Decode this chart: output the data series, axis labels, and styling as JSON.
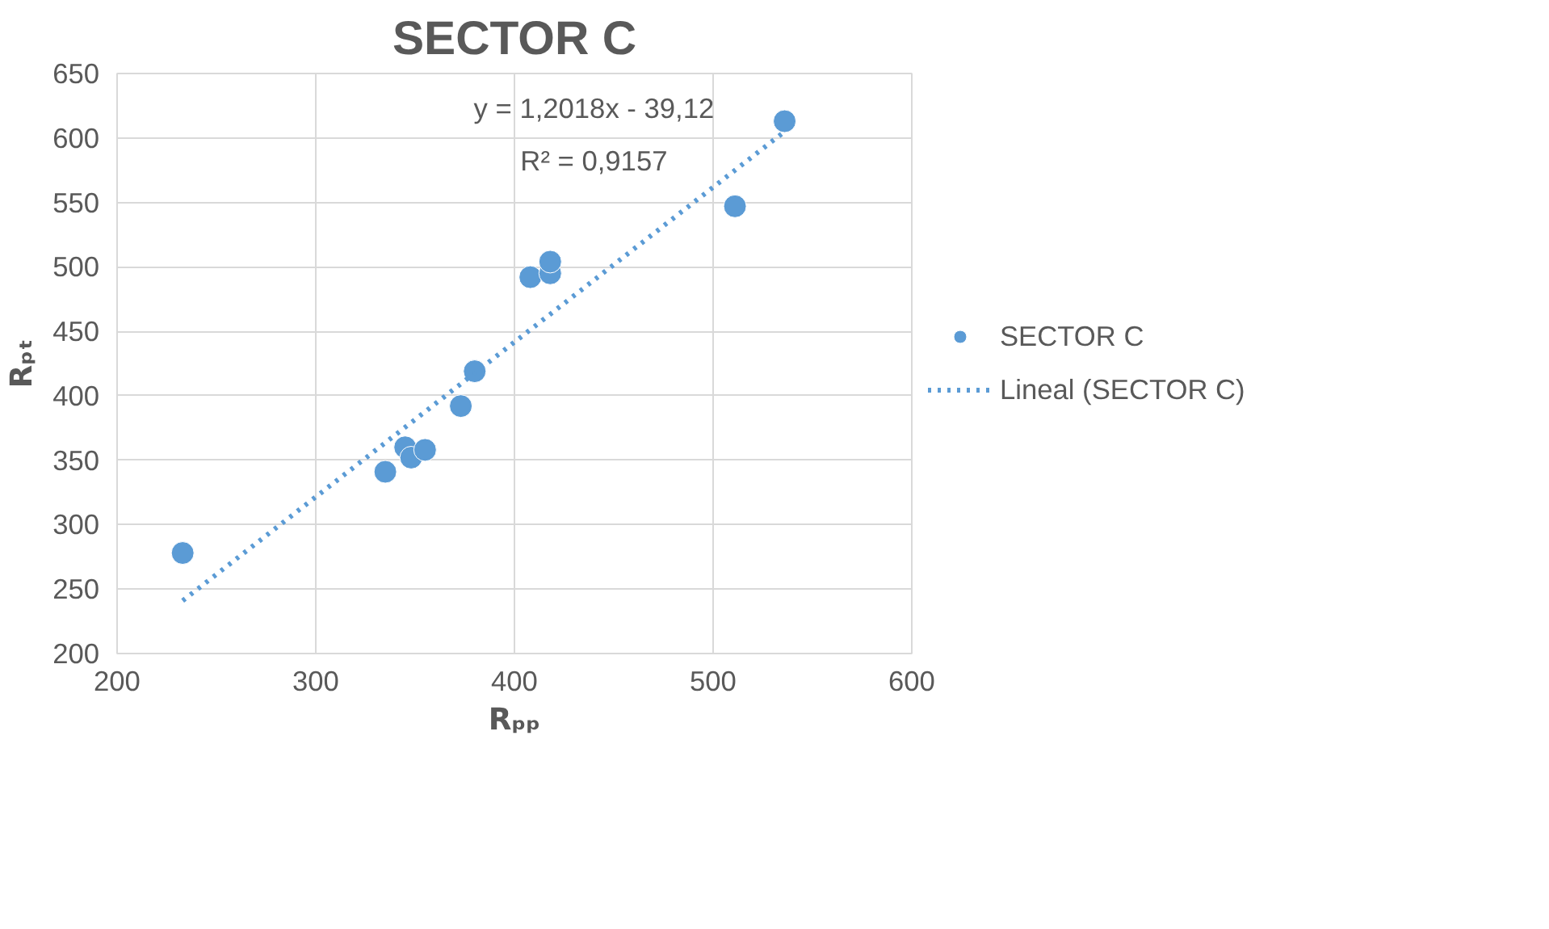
{
  "chart_data": {
    "type": "scatter",
    "title": "SECTOR C",
    "xlabel": "Rₚₚ",
    "ylabel": "Rₚₜ",
    "xlim": [
      200,
      600
    ],
    "xticks": [
      200,
      300,
      400,
      500,
      600
    ],
    "ylim": [
      200,
      650
    ],
    "yticks": [
      200,
      250,
      300,
      350,
      400,
      450,
      500,
      550,
      600,
      650
    ],
    "grid": true,
    "legend": "right",
    "annotations": [
      "y = 1,2018x - 39,12",
      "R² = 0,9157"
    ],
    "series": [
      {
        "name": "SECTOR C",
        "type": "scatter",
        "marker": "circle",
        "color": "#5b9bd5",
        "x": [
          233,
          335,
          345,
          348,
          355,
          373,
          380,
          408,
          418,
          418,
          511,
          536
        ],
        "values": [
          278,
          341,
          360,
          352,
          358,
          392,
          419,
          492,
          495,
          504,
          547,
          613
        ]
      },
      {
        "name": "Lineal (SECTOR C)",
        "type": "line",
        "line_style": "dotted",
        "color": "#5b9bd5",
        "x": [
          233,
          536
        ],
        "values": [
          241,
          605
        ]
      }
    ]
  }
}
